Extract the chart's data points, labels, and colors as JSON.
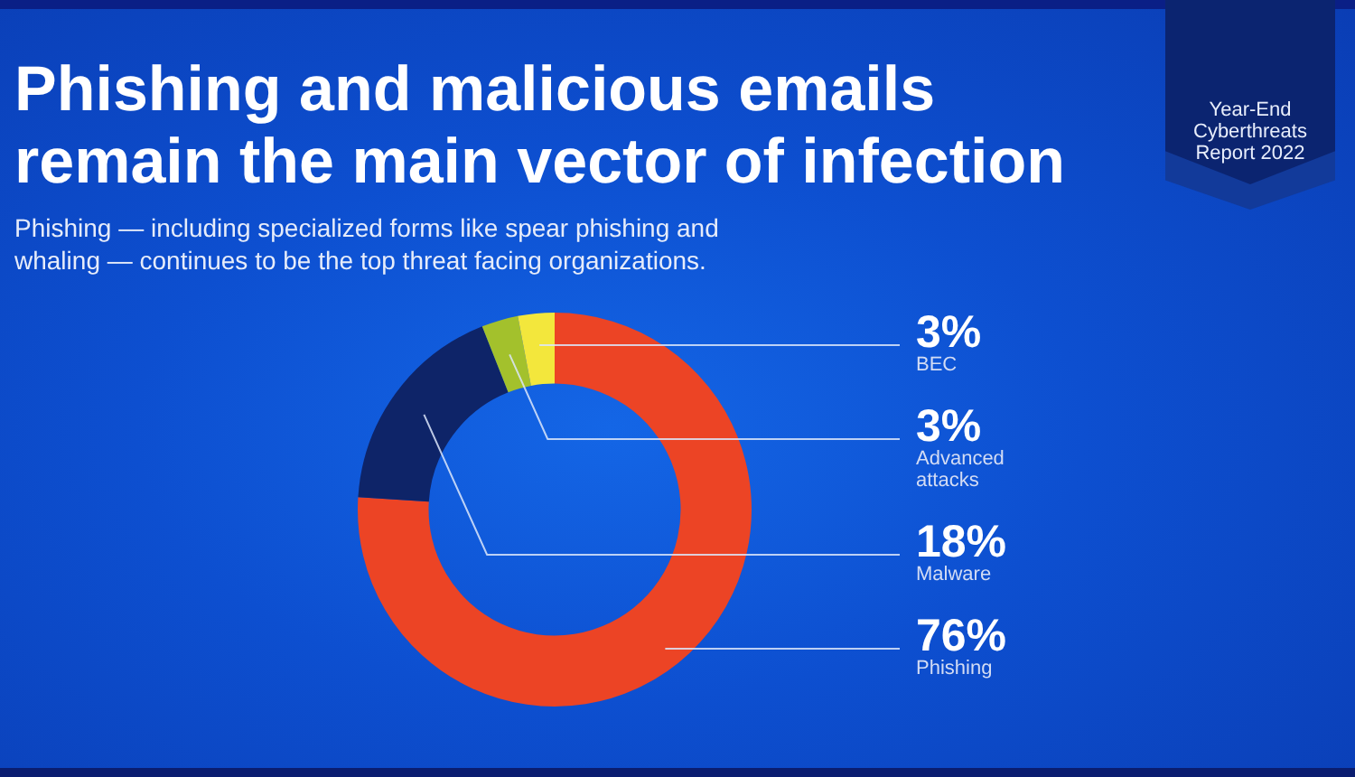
{
  "chart_data": {
    "type": "donut",
    "title": "Phishing and malicious emails remain the main vector of infection",
    "subtitle": "Phishing — including specialized forms like spear phishing and whaling — continues to be the top threat facing organizations.",
    "categories": [
      "Phishing",
      "Malware",
      "Advanced attacks",
      "BEC"
    ],
    "values": [
      76,
      18,
      3,
      3
    ],
    "colors": [
      "#ec4425",
      "#0e2468",
      "#a3c12c",
      "#f3e73c"
    ],
    "value_labels": [
      "76%",
      "18%",
      "3%",
      "3%"
    ],
    "annotations": [
      "Year-End Cyberthreats Report 2022"
    ]
  }
}
